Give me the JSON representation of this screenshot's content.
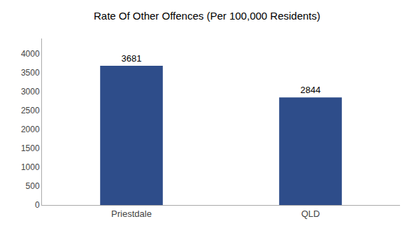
{
  "chart_data": {
    "type": "bar",
    "title": "Rate Of Other Offences (Per 100,000 Residents)",
    "categories": [
      "Priestdale",
      "QLD"
    ],
    "values": [
      3681,
      2844
    ],
    "color": "#2e4d8a",
    "ylim": [
      0,
      4400
    ],
    "yticks": [
      0,
      500,
      1000,
      1500,
      2000,
      2500,
      3000,
      3500,
      4000
    ],
    "grid": false,
    "data_labels": true
  }
}
